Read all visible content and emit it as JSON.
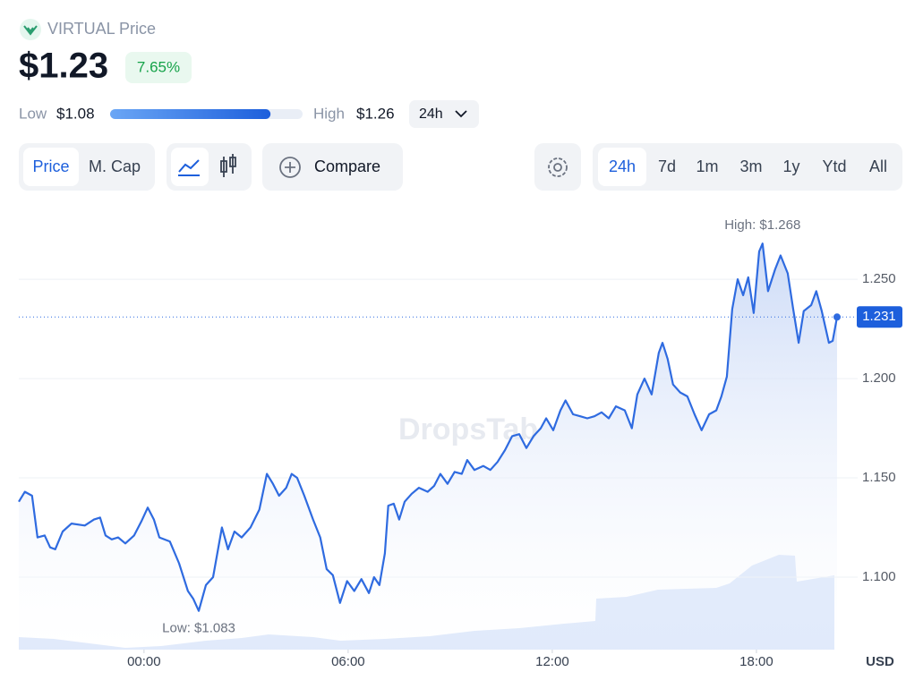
{
  "header": {
    "title": "VIRTUAL Price",
    "price": {
      "value": 1.23,
      "label": "$1.23"
    },
    "change": "7.65%",
    "low_label": "Low",
    "low": {
      "value": 1.08,
      "label": "$1.08"
    },
    "high_label": "High",
    "high": {
      "value": 1.26,
      "label": "$1.26"
    },
    "period": "24h"
  },
  "toolbar": {
    "metric_tabs": [
      "Price",
      "M. Cap"
    ],
    "compare": "Compare",
    "ranges": [
      "24h",
      "7d",
      "1m",
      "3m",
      "1y",
      "Ytd",
      "All"
    ]
  },
  "chart_data": {
    "type": "line",
    "color": "#2f6be0",
    "x": [
      -3.68,
      -3.5,
      -3.29,
      -3.13,
      -2.92,
      -2.76,
      -2.61,
      -2.39,
      -2.13,
      -1.74,
      -1.47,
      -1.29,
      -1.13,
      -0.95,
      -0.76,
      -0.55,
      -0.29,
      -0.08,
      0.11,
      0.29,
      0.45,
      0.76,
      1.03,
      1.29,
      1.45,
      1.61,
      1.82,
      2.03,
      2.29,
      2.47,
      2.66,
      2.87,
      3.13,
      3.39,
      3.61,
      3.79,
      3.97,
      4.18,
      4.34,
      4.5,
      4.71,
      4.97,
      5.18,
      5.37,
      5.55,
      5.76,
      5.97,
      6.18,
      6.39,
      6.61,
      6.76,
      6.92,
      7.08,
      7.18,
      7.34,
      7.5,
      7.66,
      7.87,
      8.08,
      8.34,
      8.53,
      8.71,
      8.92,
      9.13,
      9.34,
      9.5,
      9.71,
      9.97,
      10.18,
      10.39,
      10.61,
      10.82,
      11.03,
      11.24,
      11.45,
      11.66,
      11.82,
      12.03,
      12.24,
      12.39,
      12.61,
      12.82,
      13.03,
      13.24,
      13.45,
      13.66,
      13.87,
      14.13,
      14.34,
      14.5,
      14.71,
      14.92,
      15.13,
      15.24,
      15.39,
      15.55,
      15.76,
      15.97,
      16.18,
      16.39,
      16.61,
      16.82,
      16.97,
      17.13,
      17.29,
      17.45,
      17.61,
      17.76,
      17.92,
      18.08,
      18.18,
      18.34,
      18.55,
      18.71,
      18.92,
      19.08,
      19.24,
      19.39,
      19.61,
      19.76,
      19.92,
      20.13,
      20.24,
      20.37
    ],
    "values": [
      1.138,
      1.143,
      1.141,
      1.12,
      1.121,
      1.115,
      1.114,
      1.123,
      1.127,
      1.126,
      1.129,
      1.13,
      1.121,
      1.119,
      1.12,
      1.117,
      1.121,
      1.128,
      1.135,
      1.129,
      1.12,
      1.118,
      1.107,
      1.093,
      1.089,
      1.083,
      1.096,
      1.1,
      1.125,
      1.114,
      1.123,
      1.12,
      1.125,
      1.134,
      1.152,
      1.147,
      1.141,
      1.145,
      1.152,
      1.15,
      1.141,
      1.129,
      1.12,
      1.104,
      1.101,
      1.087,
      1.098,
      1.093,
      1.099,
      1.092,
      1.1,
      1.096,
      1.112,
      1.136,
      1.137,
      1.129,
      1.138,
      1.142,
      1.145,
      1.143,
      1.146,
      1.152,
      1.147,
      1.153,
      1.152,
      1.159,
      1.154,
      1.156,
      1.154,
      1.158,
      1.164,
      1.171,
      1.172,
      1.165,
      1.171,
      1.175,
      1.18,
      1.174,
      1.184,
      1.189,
      1.182,
      1.181,
      1.18,
      1.181,
      1.183,
      1.18,
      1.186,
      1.184,
      1.175,
      1.192,
      1.2,
      1.192,
      1.213,
      1.218,
      1.21,
      1.197,
      1.193,
      1.191,
      1.182,
      1.174,
      1.182,
      1.184,
      1.191,
      1.201,
      1.235,
      1.25,
      1.242,
      1.251,
      1.233,
      1.264,
      1.268,
      1.244,
      1.255,
      1.262,
      1.253,
      1.235,
      1.218,
      1.234,
      1.237,
      1.244,
      1.234,
      1.218,
      1.219,
      1.231
    ],
    "xlim": [
      -3.68,
      20.37
    ],
    "xticks": [
      {
        "value": 0,
        "label": "00:00"
      },
      {
        "value": 6,
        "label": "06:00"
      },
      {
        "value": 12,
        "label": "12:00"
      },
      {
        "value": 18,
        "label": "18:00"
      }
    ],
    "ylim": [
      1.0635,
      1.287
    ],
    "yticks": [
      {
        "value": 1.1,
        "label": "1.100"
      },
      {
        "value": 1.15,
        "label": "1.150"
      },
      {
        "value": 1.2,
        "label": "1.200"
      },
      {
        "value": 1.25,
        "label": "1.250"
      }
    ],
    "grid": true,
    "high_annotation": "High: $1.268",
    "low_annotation": "Low: $1.083",
    "unit": "USD",
    "watermark": "DropsTab"
  }
}
